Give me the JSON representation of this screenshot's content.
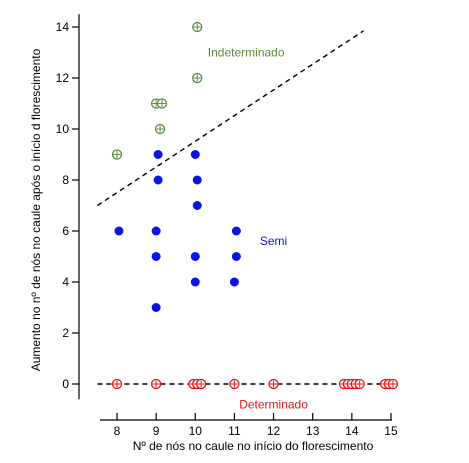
{
  "chart_data": {
    "type": "scatter",
    "title": "",
    "xlabel": "Nº de nós no caule no início do florescimento",
    "ylabel": "Aumento no nº de nós no caule após o início d florescimento",
    "xlim": [
      7.5,
      15.1
    ],
    "ylim": [
      -0.8,
      14.5
    ],
    "x_ticks": [
      8,
      9,
      10,
      11,
      12,
      13,
      14,
      15
    ],
    "y_ticks": [
      0,
      2,
      4,
      6,
      8,
      10,
      12,
      14
    ],
    "grid": false,
    "colors": {
      "indeterminado": "#5b8a3c",
      "semi": "#0a14e6",
      "determinado": "#e01818"
    },
    "series": [
      {
        "name": "Indeterminado",
        "marker": "open-circle-cross",
        "color": "#5b8a3c",
        "points": [
          [
            8.0,
            9.0
          ],
          [
            9.0,
            11.0
          ],
          [
            9.15,
            11.0
          ],
          [
            9.1,
            10.0
          ],
          [
            10.05,
            14.0
          ],
          [
            10.05,
            12.0
          ]
        ]
      },
      {
        "name": "Semi",
        "marker": "filled-circle",
        "color": "#0a14e6",
        "points": [
          [
            8.05,
            6.0
          ],
          [
            9.05,
            9.0
          ],
          [
            9.05,
            8.0
          ],
          [
            9.0,
            6.0
          ],
          [
            9.0,
            5.0
          ],
          [
            9.0,
            3.0
          ],
          [
            10.0,
            9.0
          ],
          [
            10.05,
            8.0
          ],
          [
            10.05,
            7.0
          ],
          [
            10.0,
            5.0
          ],
          [
            10.0,
            4.0
          ],
          [
            11.05,
            6.0
          ],
          [
            11.05,
            5.0
          ],
          [
            11.0,
            4.0
          ]
        ]
      },
      {
        "name": "Determinado",
        "marker": "open-circle-cross",
        "color": "#e01818",
        "points": [
          [
            8.0,
            0.0
          ],
          [
            9.0,
            0.0
          ],
          [
            9.95,
            0.0
          ],
          [
            10.05,
            0.0
          ],
          [
            10.15,
            0.0
          ],
          [
            11.0,
            0.0
          ],
          [
            12.0,
            0.0
          ],
          [
            13.8,
            0.0
          ],
          [
            13.9,
            0.0
          ],
          [
            14.0,
            0.0
          ],
          [
            14.1,
            0.0
          ],
          [
            14.2,
            0.0
          ],
          [
            14.85,
            0.0
          ],
          [
            14.95,
            0.0
          ],
          [
            15.05,
            0.0
          ]
        ]
      }
    ],
    "lines": [
      {
        "from": [
          7.5,
          7.0
        ],
        "to": [
          14.3,
          13.85
        ],
        "style": "dashed"
      },
      {
        "from": [
          7.5,
          0.0
        ],
        "to": [
          15.1,
          0.0
        ],
        "style": "dashed"
      }
    ],
    "annotations": [
      {
        "text": "Indeterminado",
        "x": 11.3,
        "y": 13.0,
        "color": "#5b8a3c"
      },
      {
        "text": "Semi",
        "x": 12.0,
        "y": 5.6,
        "color": "#0a14e6"
      },
      {
        "text": "Determinado",
        "x": 12.0,
        "y": -0.8,
        "color": "#e01818"
      }
    ]
  }
}
